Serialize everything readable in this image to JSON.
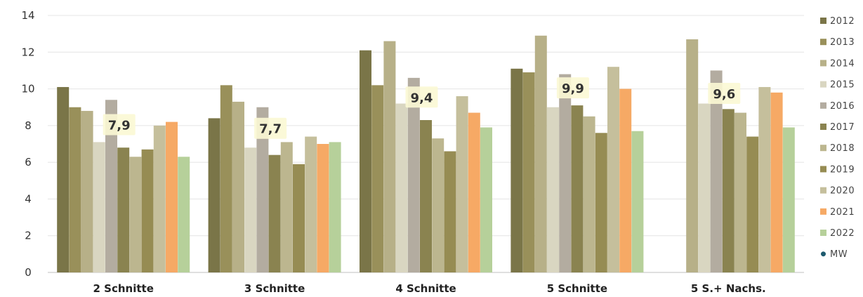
{
  "chart_data": {
    "type": "bar",
    "title": "",
    "xlabel": "",
    "ylabel": "",
    "ylim": [
      0,
      14
    ],
    "yticks": [
      0,
      2,
      4,
      6,
      8,
      10,
      12,
      14
    ],
    "grid": true,
    "legend_position": "right",
    "categories": [
      "2 Schnitte",
      "3 Schnitte",
      "4 Schnitte",
      "5 Schnitte",
      "5 S.+ Nachs."
    ],
    "series": [
      {
        "name": "2012",
        "color": "#7a7548",
        "values": [
          10.1,
          8.4,
          12.1,
          11.1,
          null
        ]
      },
      {
        "name": "2013",
        "color": "#99905a",
        "values": [
          9.0,
          10.2,
          10.2,
          10.9,
          null
        ]
      },
      {
        "name": "2014",
        "color": "#b7b088",
        "values": [
          8.8,
          9.3,
          12.6,
          12.9,
          12.7
        ]
      },
      {
        "name": "2015",
        "color": "#d9d6c1",
        "values": [
          7.1,
          6.8,
          9.2,
          9.0,
          9.2
        ]
      },
      {
        "name": "2016",
        "color": "#b3aca0",
        "values": [
          9.4,
          9.0,
          10.6,
          10.8,
          11.0
        ]
      },
      {
        "name": "2017",
        "color": "#8a8350",
        "values": [
          6.8,
          6.4,
          8.3,
          9.1,
          8.9
        ]
      },
      {
        "name": "2018",
        "color": "#bcb68f",
        "values": [
          6.3,
          7.1,
          7.3,
          8.5,
          8.7
        ]
      },
      {
        "name": "2019",
        "color": "#968c53",
        "values": [
          6.7,
          5.9,
          6.6,
          7.6,
          7.4
        ]
      },
      {
        "name": "2020",
        "color": "#c5bf9c",
        "values": [
          8.0,
          7.4,
          9.6,
          11.2,
          10.1
        ]
      },
      {
        "name": "2021",
        "color": "#f6a965",
        "values": [
          8.2,
          7.0,
          8.7,
          10.0,
          9.8
        ]
      },
      {
        "name": "2022",
        "color": "#b6d09a",
        "values": [
          6.3,
          7.1,
          7.9,
          7.7,
          7.9
        ]
      }
    ],
    "mw": {
      "name": "MW",
      "color": "#1e5a6e",
      "values": [
        7.9,
        7.7,
        9.4,
        9.9,
        9.6
      ],
      "labels": [
        "7,9",
        "7,7",
        "9,4",
        "9,9",
        "9,6"
      ]
    }
  }
}
